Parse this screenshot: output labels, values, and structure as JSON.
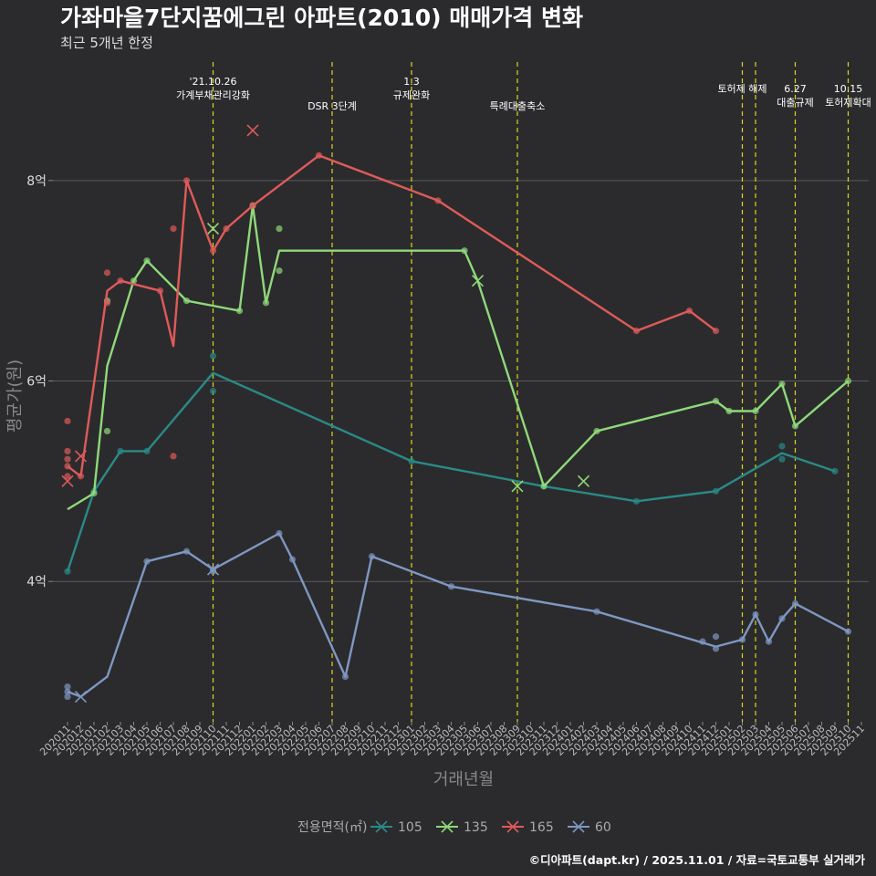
{
  "chart_data": {
    "type": "line",
    "title": "가좌마을7단지꿈에그린 아파트(2010) 매매가격 변화",
    "subtitle": "최근 5개년 한정",
    "xlabel": "거래년월",
    "ylabel": "평균가(원)",
    "caption": "©디아파트(dapt.kr) / 2025.11.01 / 자료=국토교통부 실거래가",
    "ylim": [
      2.6,
      9.2
    ],
    "yticks": [
      {
        "value": 4,
        "label": "4억"
      },
      {
        "value": 6,
        "label": "6억"
      },
      {
        "value": 8,
        "label": "8억"
      }
    ],
    "x_categories": [
      "202011",
      "202012",
      "202101",
      "202102",
      "202103",
      "202104",
      "202105",
      "202106",
      "202107",
      "202108",
      "202109",
      "202110",
      "202111",
      "202112",
      "202201",
      "202202",
      "202203",
      "202204",
      "202205",
      "202206",
      "202207",
      "202208",
      "202209",
      "202210",
      "202211",
      "202212",
      "202301",
      "202302",
      "202303",
      "202304",
      "202305",
      "202306",
      "202307",
      "202308",
      "202309",
      "202310",
      "202311",
      "202312",
      "202401",
      "202402",
      "202403",
      "202404",
      "202405",
      "202406",
      "202407",
      "202408",
      "202409",
      "202410",
      "202411",
      "202412",
      "202501",
      "202502",
      "202503",
      "202504",
      "202505",
      "202506",
      "202507",
      "202508",
      "202509",
      "202510",
      "202511"
    ],
    "legend_title": "전용면적(㎡)",
    "series": [
      {
        "name": "105",
        "color": "#2a8a87",
        "line": [
          [
            "202011",
            4.1
          ],
          [
            "202101",
            4.9
          ],
          [
            "202103",
            5.3
          ],
          [
            "202105",
            5.3
          ],
          [
            "202110",
            6.08
          ],
          [
            "202301",
            5.2
          ],
          [
            "202311",
            4.95
          ],
          [
            "202406",
            4.8
          ],
          [
            "202412",
            4.9
          ],
          [
            "202505",
            5.28
          ],
          [
            "202509",
            5.1
          ]
        ],
        "points": [
          [
            "202011",
            4.1
          ],
          [
            "202101",
            4.9
          ],
          [
            "202103",
            5.3
          ],
          [
            "202105",
            5.3
          ],
          [
            "202110",
            6.25
          ],
          [
            "202110",
            5.9
          ],
          [
            "202301",
            5.2
          ],
          [
            "202311",
            4.95
          ],
          [
            "202406",
            4.8
          ],
          [
            "202412",
            4.9
          ],
          [
            "202505",
            5.35
          ],
          [
            "202505",
            5.22
          ],
          [
            "202509",
            5.1
          ]
        ],
        "crosses": []
      },
      {
        "name": "135",
        "color": "#8fd97a",
        "line": [
          [
            "202011",
            4.72
          ],
          [
            "202101",
            4.88
          ],
          [
            "202102",
            6.15
          ],
          [
            "202104",
            7.0
          ],
          [
            "202105",
            7.2
          ],
          [
            "202108",
            6.8
          ],
          [
            "202112",
            6.7
          ],
          [
            "202201",
            7.75
          ],
          [
            "202202",
            6.78
          ],
          [
            "202203",
            7.3
          ],
          [
            "202305",
            7.3
          ],
          [
            "202306",
            7.0
          ],
          [
            "202311",
            4.95
          ],
          [
            "202403",
            5.5
          ],
          [
            "202412",
            5.8
          ],
          [
            "202501",
            5.7
          ],
          [
            "202503",
            5.7
          ],
          [
            "202505",
            5.97
          ],
          [
            "202506",
            5.55
          ],
          [
            "202510",
            6.0
          ]
        ],
        "points": [
          [
            "202101",
            4.88
          ],
          [
            "202102",
            6.8
          ],
          [
            "202102",
            5.5
          ],
          [
            "202104",
            7.0
          ],
          [
            "202105",
            7.2
          ],
          [
            "202108",
            6.8
          ],
          [
            "202112",
            6.7
          ],
          [
            "202201",
            7.75
          ],
          [
            "202202",
            6.78
          ],
          [
            "202203",
            7.52
          ],
          [
            "202203",
            7.1
          ],
          [
            "202305",
            7.3
          ],
          [
            "202311",
            4.95
          ],
          [
            "202403",
            5.5
          ],
          [
            "202412",
            5.8
          ],
          [
            "202501",
            5.7
          ],
          [
            "202503",
            5.7
          ],
          [
            "202505",
            5.97
          ],
          [
            "202506",
            5.55
          ],
          [
            "202510",
            6.0
          ]
        ],
        "crosses": [
          [
            "202110",
            7.52
          ],
          [
            "202306",
            7.0
          ],
          [
            "202309",
            4.95
          ],
          [
            "202402",
            5.0
          ]
        ]
      },
      {
        "name": "165",
        "color": "#e05a5a",
        "line": [
          [
            "202011",
            5.15
          ],
          [
            "202012",
            5.05
          ],
          [
            "202102",
            6.9
          ],
          [
            "202103",
            7.0
          ],
          [
            "202106",
            6.9
          ],
          [
            "202107",
            6.35
          ],
          [
            "202108",
            8.0
          ],
          [
            "202110",
            7.3
          ],
          [
            "202111",
            7.52
          ],
          [
            "202201",
            7.75
          ],
          [
            "202206",
            8.25
          ],
          [
            "202303",
            7.8
          ],
          [
            "202406",
            6.5
          ],
          [
            "202410",
            6.7
          ],
          [
            "202412",
            6.5
          ]
        ],
        "points": [
          [
            "202011",
            5.6
          ],
          [
            "202011",
            5.3
          ],
          [
            "202011",
            5.22
          ],
          [
            "202011",
            5.15
          ],
          [
            "202011",
            5.05
          ],
          [
            "202012",
            5.05
          ],
          [
            "202102",
            7.08
          ],
          [
            "202102",
            6.78
          ],
          [
            "202103",
            7.0
          ],
          [
            "202106",
            6.9
          ],
          [
            "202107",
            7.52
          ],
          [
            "202107",
            5.25
          ],
          [
            "202108",
            8.0
          ],
          [
            "202110",
            7.3
          ],
          [
            "202111",
            7.52
          ],
          [
            "202201",
            7.75
          ],
          [
            "202206",
            8.25
          ],
          [
            "202303",
            7.8
          ],
          [
            "202406",
            6.5
          ],
          [
            "202410",
            6.7
          ],
          [
            "202412",
            6.5
          ]
        ],
        "crosses": [
          [
            "202011",
            5.0
          ],
          [
            "202012",
            5.25
          ],
          [
            "202201",
            8.5
          ]
        ]
      },
      {
        "name": "60",
        "color": "#7f97c2",
        "line": [
          [
            "202011",
            2.9
          ],
          [
            "202012",
            2.85
          ],
          [
            "202102",
            3.05
          ],
          [
            "202105",
            4.2
          ],
          [
            "202108",
            4.3
          ],
          [
            "202110",
            4.12
          ],
          [
            "202203",
            4.48
          ],
          [
            "202204",
            4.22
          ],
          [
            "202208",
            3.05
          ],
          [
            "202210",
            4.25
          ],
          [
            "202304",
            3.95
          ],
          [
            "202403",
            3.7
          ],
          [
            "202412",
            3.35
          ],
          [
            "202502",
            3.42
          ],
          [
            "202503",
            3.67
          ],
          [
            "202504",
            3.4
          ],
          [
            "202505",
            3.63
          ],
          [
            "202506",
            3.78
          ],
          [
            "202510",
            3.5
          ]
        ],
        "points": [
          [
            "202011",
            2.95
          ],
          [
            "202011",
            2.9
          ],
          [
            "202011",
            2.85
          ],
          [
            "202105",
            4.2
          ],
          [
            "202108",
            4.3
          ],
          [
            "202110",
            4.12
          ],
          [
            "202110",
            4.1
          ],
          [
            "202203",
            4.48
          ],
          [
            "202204",
            4.22
          ],
          [
            "202208",
            3.05
          ],
          [
            "202210",
            4.25
          ],
          [
            "202304",
            3.95
          ],
          [
            "202403",
            3.7
          ],
          [
            "202411",
            3.4
          ],
          [
            "202412",
            3.45
          ],
          [
            "202412",
            3.33
          ],
          [
            "202502",
            3.42
          ],
          [
            "202503",
            3.67
          ],
          [
            "202504",
            3.4
          ],
          [
            "202505",
            3.63
          ],
          [
            "202506",
            3.78
          ],
          [
            "202510",
            3.5
          ]
        ],
        "crosses": [
          [
            "202012",
            2.85
          ],
          [
            "202110",
            4.12
          ]
        ]
      }
    ],
    "events": [
      {
        "x": "202110",
        "lines": [
          "'21.10.26",
          "가계부채관리강화"
        ],
        "row": 0
      },
      {
        "x": "202207",
        "lines": [
          "DSR 3단계"
        ],
        "row": 2
      },
      {
        "x": "202301",
        "lines": [
          "1.3",
          "규제완화"
        ],
        "row": 0
      },
      {
        "x": "202309",
        "lines": [
          "특례대출축소"
        ],
        "row": 2
      },
      {
        "x": "202502",
        "lines": [
          "토허제 해제"
        ],
        "row": 1
      },
      {
        "x": "202503",
        "lines": [],
        "row": 1
      },
      {
        "x": "202506",
        "lines": [
          "6.27",
          "대출규제"
        ],
        "row": 1
      },
      {
        "x": "202510",
        "lines": [
          "10.15",
          "토허제확대"
        ],
        "row": 1
      }
    ]
  }
}
